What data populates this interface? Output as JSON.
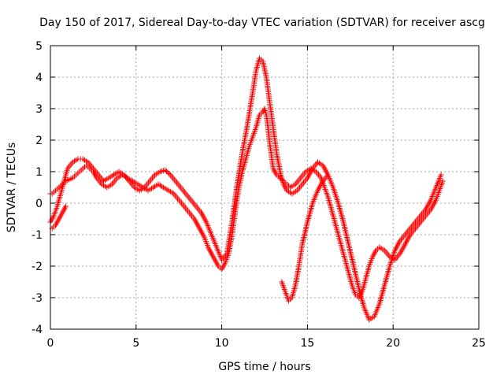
{
  "chart_data": {
    "type": "scatter",
    "title": "Day 150 of 2017, Sidereal Day-to-day VTEC variation (SDTVAR) for receiver ascg",
    "xlabel": "GPS time / hours",
    "ylabel": "SDTVAR / TECUs",
    "xlim": [
      0,
      25
    ],
    "ylim": [
      -4,
      5
    ],
    "xticks": [
      "0",
      "5",
      "10",
      "15",
      "20",
      "25"
    ],
    "yticks": [
      "-4",
      "-3",
      "-2",
      "-1",
      "0",
      "1",
      "2",
      "3",
      "4",
      "5"
    ],
    "grid": true,
    "marker": "+",
    "color": "#ff0000",
    "series": [
      {
        "x": [
          0.0,
          0.1,
          0.2,
          0.3,
          0.4,
          0.5,
          0.7,
          0.9,
          1.1,
          1.3,
          1.5,
          1.7,
          1.9,
          2.1,
          2.3,
          2.5,
          2.7,
          3.0,
          3.3,
          3.6,
          3.9,
          4.2,
          4.5,
          4.8,
          5.1,
          5.4,
          5.7,
          6.0,
          6.3,
          6.6,
          6.9,
          7.2,
          7.5,
          7.8,
          8.1,
          8.4,
          8.7,
          9.0,
          9.2,
          9.4,
          9.6,
          9.8,
          10.0,
          10.2,
          10.4,
          10.6,
          10.8,
          11.0,
          11.2,
          11.4,
          11.6,
          11.8,
          12.0,
          12.2,
          12.4,
          12.5,
          12.6,
          12.7,
          12.8,
          12.9,
          13.0,
          13.2,
          13.4,
          13.6,
          13.8,
          14.0,
          14.3,
          14.6,
          14.9,
          15.2,
          15.5,
          15.8,
          16.0,
          16.2,
          16.4,
          16.6,
          16.8,
          17.0,
          17.2,
          17.4,
          17.6,
          17.8,
          18.0,
          18.2,
          18.4,
          18.6,
          18.8,
          19.0,
          19.2,
          19.5,
          19.8,
          20.1,
          20.4,
          20.7,
          21.0,
          21.3,
          21.6,
          21.9,
          22.2,
          22.5,
          22.7,
          22.9
        ],
        "y": [
          0.3,
          0.3,
          0.35,
          0.4,
          0.45,
          0.5,
          0.6,
          0.7,
          0.75,
          0.8,
          0.9,
          1.0,
          1.1,
          1.2,
          1.1,
          1.0,
          0.8,
          0.6,
          0.5,
          0.6,
          0.8,
          0.9,
          0.8,
          0.7,
          0.6,
          0.5,
          0.4,
          0.5,
          0.6,
          0.5,
          0.4,
          0.3,
          0.1,
          -0.1,
          -0.3,
          -0.5,
          -0.8,
          -1.1,
          -1.4,
          -1.6,
          -1.8,
          -2.0,
          -2.1,
          -1.9,
          -1.6,
          -1.0,
          -0.2,
          0.5,
          1.0,
          1.4,
          1.8,
          2.1,
          2.4,
          2.8,
          2.9,
          3.0,
          2.8,
          2.4,
          1.9,
          1.5,
          1.1,
          0.9,
          0.8,
          0.7,
          0.6,
          0.5,
          0.6,
          0.8,
          1.0,
          1.1,
          1.0,
          0.8,
          0.5,
          0.2,
          -0.2,
          -0.6,
          -1.0,
          -1.4,
          -1.8,
          -2.2,
          -2.6,
          -2.9,
          -3.0,
          -2.8,
          -2.4,
          -2.0,
          -1.7,
          -1.5,
          -1.4,
          -1.5,
          -1.7,
          -1.8,
          -1.6,
          -1.3,
          -1.0,
          -0.8,
          -0.6,
          -0.4,
          -0.2,
          0.1,
          0.4,
          0.7
        ]
      },
      {
        "x": [
          0.0,
          0.2,
          0.4,
          0.6,
          0.8,
          1.0,
          1.3,
          1.6,
          1.9,
          2.2,
          2.5,
          2.8,
          3.1,
          3.4,
          3.7,
          4.0,
          4.3,
          4.6,
          4.9,
          5.2,
          5.5,
          5.8,
          6.1,
          6.4,
          6.7,
          7.0,
          7.3,
          7.6,
          7.9,
          8.2,
          8.5,
          8.8,
          9.1,
          9.4,
          9.7,
          10.0,
          10.3,
          10.6,
          10.9,
          11.2,
          11.5,
          11.8,
          12.0,
          12.2,
          12.4,
          12.6,
          12.8,
          13.0,
          13.2,
          13.4,
          13.6,
          13.8,
          14.1,
          14.4,
          14.7,
          15.0,
          15.3,
          15.6,
          15.9,
          16.2,
          16.5,
          16.8,
          17.1,
          17.4,
          17.7,
          18.0,
          18.3,
          18.6,
          18.9,
          19.2,
          19.5,
          19.8,
          20.1,
          20.4,
          20.7,
          21.0,
          21.3,
          21.6,
          21.9,
          22.2,
          22.5,
          22.8
        ],
        "y": [
          -0.6,
          -0.4,
          -0.1,
          0.3,
          0.7,
          1.1,
          1.3,
          1.4,
          1.4,
          1.3,
          1.1,
          0.9,
          0.7,
          0.8,
          0.9,
          1.0,
          0.9,
          0.7,
          0.5,
          0.4,
          0.5,
          0.7,
          0.9,
          1.0,
          1.05,
          0.9,
          0.7,
          0.5,
          0.3,
          0.1,
          -0.1,
          -0.3,
          -0.6,
          -1.0,
          -1.4,
          -1.8,
          -1.6,
          -0.6,
          0.6,
          1.6,
          2.5,
          3.5,
          4.2,
          4.6,
          4.5,
          4.0,
          3.2,
          2.4,
          1.6,
          1.0,
          0.6,
          0.4,
          0.3,
          0.4,
          0.6,
          0.8,
          1.1,
          1.3,
          1.2,
          0.9,
          0.5,
          0.0,
          -0.6,
          -1.3,
          -2.0,
          -2.7,
          -3.3,
          -3.7,
          -3.6,
          -3.2,
          -2.6,
          -2.0,
          -1.5,
          -1.2,
          -1.0,
          -0.8,
          -0.6,
          -0.4,
          -0.2,
          0.1,
          0.5,
          0.9
        ]
      },
      {
        "x": [
          0.1,
          0.3,
          0.5,
          0.7,
          0.9,
          13.5,
          13.7,
          13.9,
          14.1,
          14.3,
          14.5,
          14.7,
          15.0,
          15.3,
          15.6,
          15.9,
          16.2
        ],
        "y": [
          -0.8,
          -0.7,
          -0.5,
          -0.3,
          -0.1,
          -2.5,
          -2.8,
          -3.1,
          -3.0,
          -2.6,
          -2.0,
          -1.3,
          -0.6,
          0.0,
          0.4,
          0.7,
          0.9
        ]
      }
    ]
  }
}
